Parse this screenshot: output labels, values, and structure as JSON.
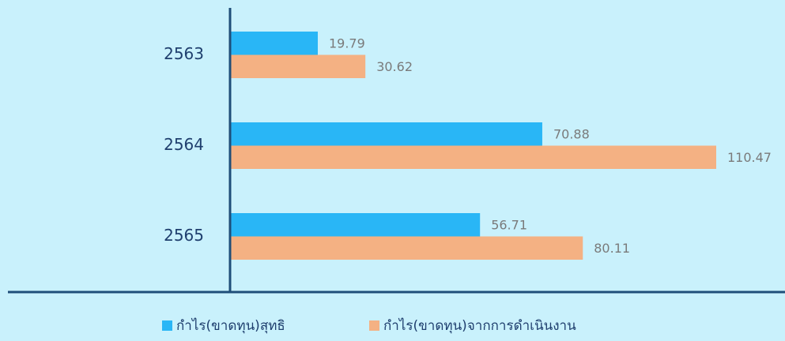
{
  "chart_data": {
    "type": "hbar",
    "categories": [
      "2563",
      "2564",
      "2565"
    ],
    "series": [
      {
        "name": "กำไร(ขาดทุน)สุทธิ",
        "color": "#29b6f6",
        "values": [
          19.79,
          70.88,
          56.71
        ]
      },
      {
        "name": "กำไร(ขาดทุน)จากการดำเนินงาน",
        "color": "#f4b183",
        "values": [
          30.62,
          110.47,
          80.11
        ]
      }
    ]
  }
}
